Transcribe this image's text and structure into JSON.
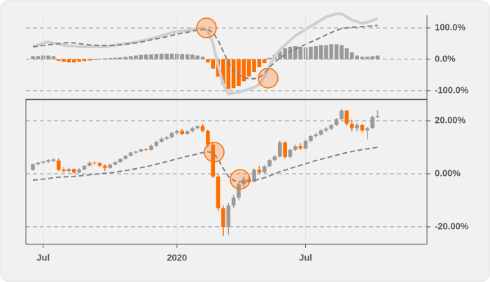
{
  "chart_data": [
    {
      "type": "macd",
      "ylim": [
        -127,
        140
      ],
      "yticks": [
        {
          "value": 100,
          "label": "100.0%"
        },
        {
          "value": 0,
          "label": "0.0%"
        },
        {
          "value": -100,
          "label": "-100.0%"
        }
      ],
      "grid": true,
      "histogram": [
        10,
        10,
        12,
        12,
        10,
        -5,
        -8,
        -10,
        -10,
        -8,
        -6,
        -4,
        -2,
        2,
        3,
        4,
        5,
        6,
        8,
        10,
        12,
        14,
        15,
        16,
        17,
        18,
        18,
        18,
        18,
        17,
        16,
        15,
        12,
        8,
        -10,
        -30,
        -55,
        -80,
        -95,
        -92,
        -85,
        -70,
        -55,
        -40,
        -25,
        -12,
        5,
        15,
        25,
        35,
        40,
        42,
        40,
        38,
        40,
        42,
        45,
        45,
        48,
        48,
        45,
        35,
        22,
        12,
        8,
        8,
        10,
        12
      ],
      "positive_color": "#9a9a9a",
      "negative_color": "#ff6d00",
      "series": [
        {
          "color": "#cfcfcf",
          "style": "solid",
          "values": [
            40,
            45,
            52,
            55,
            52,
            48,
            45,
            43,
            42,
            40,
            40,
            40,
            40,
            40,
            40,
            42,
            45,
            48,
            50,
            52,
            55,
            58,
            62,
            66,
            70,
            75,
            80,
            85,
            88,
            90,
            92,
            95,
            98,
            100,
            90,
            50,
            -20,
            -80,
            -110,
            -108,
            -105,
            -100,
            -95,
            -90,
            -80,
            -55,
            -20,
            10,
            30,
            45,
            60,
            75,
            85,
            95,
            105,
            115,
            125,
            135,
            140,
            145,
            145,
            135,
            125,
            120,
            115,
            118,
            124,
            130
          ]
        },
        {
          "color": "#808080",
          "style": "dashed",
          "values": [
            40,
            42,
            44,
            46,
            48,
            50,
            52,
            53,
            52,
            50,
            48,
            46,
            45,
            44,
            44,
            44,
            45,
            46,
            48,
            50,
            52,
            55,
            58,
            62,
            65,
            68,
            72,
            76,
            80,
            83,
            86,
            90,
            93,
            95,
            95,
            85,
            60,
            25,
            -10,
            -35,
            -50,
            -58,
            -62,
            -62,
            -58,
            -45,
            -25,
            -10,
            5,
            15,
            25,
            32,
            40,
            48,
            55,
            62,
            70,
            78,
            85,
            92,
            98,
            100,
            102,
            103,
            104,
            105,
            106,
            108
          ]
        }
      ]
    },
    {
      "type": "candlestick",
      "categories": [
        null,
        null,
        "Jul",
        null,
        null,
        null,
        null,
        null,
        null,
        null,
        null,
        null,
        null,
        null,
        null,
        null,
        null,
        null,
        null,
        null,
        null,
        null,
        null,
        null,
        null,
        null,
        null,
        null,
        "2020",
        null,
        null,
        null,
        null,
        null,
        null,
        null,
        null,
        null,
        null,
        null,
        null,
        null,
        null,
        null,
        null,
        null,
        null,
        null,
        null,
        null,
        null,
        null,
        null,
        "Jul",
        null,
        null,
        null,
        null,
        null,
        null,
        null,
        null,
        null,
        null,
        null,
        null,
        null,
        null
      ],
      "open": [
        1.5,
        3.6,
        4.2,
        4.6,
        4.8,
        5.0,
        1.5,
        1.0,
        1.8,
        0.5,
        1.6,
        3.0,
        4.2,
        4.0,
        3.0,
        2.2,
        3.5,
        4.4,
        5.6,
        6.8,
        8.0,
        8.4,
        9.2,
        9.0,
        10.6,
        12.0,
        13.2,
        13.8,
        15.4,
        16.2,
        15.0,
        16.0,
        17.2,
        18.0,
        16.2,
        11.0,
        -1.0,
        -13.0,
        -20.0,
        -12.0,
        -9.0,
        -4.0,
        -2.0,
        -3.0,
        1.5,
        0.5,
        2.8,
        5.2,
        6.5,
        11.8,
        6.4,
        9.0,
        10.4,
        9.6,
        12.4,
        14.2,
        14.8,
        16.4,
        17.0,
        18.4,
        20.6,
        23.8,
        18.8,
        17.2,
        18.4,
        16.4,
        17.2,
        21.4
      ],
      "high": [
        3.8,
        4.5,
        5.0,
        5.5,
        5.8,
        5.8,
        2.5,
        2.2,
        2.0,
        2.0,
        3.2,
        4.6,
        4.6,
        4.4,
        3.6,
        3.8,
        4.6,
        5.8,
        7.0,
        8.2,
        8.6,
        9.5,
        9.6,
        11.0,
        12.4,
        13.8,
        14.2,
        15.8,
        16.6,
        16.8,
        16.4,
        17.8,
        18.2,
        18.8,
        16.6,
        11.6,
        0.0,
        -12.0,
        -11.0,
        -8.0,
        -3.0,
        -1.0,
        -0.5,
        2.0,
        3.0,
        3.2,
        5.5,
        7.0,
        12.5,
        12.2,
        9.5,
        11.0,
        11.5,
        12.8,
        14.6,
        15.5,
        16.8,
        17.6,
        18.6,
        21.0,
        24.6,
        24.0,
        20.5,
        19.2,
        18.8,
        17.6,
        22.0,
        24.0
      ],
      "low": [
        1.2,
        3.2,
        3.8,
        4.0,
        4.6,
        1.0,
        0.5,
        0.3,
        0.0,
        0.2,
        1.4,
        2.8,
        3.5,
        2.5,
        1.0,
        2.0,
        3.2,
        4.2,
        5.4,
        6.6,
        7.6,
        8.2,
        8.6,
        8.8,
        10.2,
        11.8,
        12.6,
        13.4,
        14.8,
        14.6,
        14.8,
        15.6,
        16.8,
        15.6,
        10.0,
        -1.5,
        -14.0,
        -23.5,
        -23.0,
        -13.0,
        -10.0,
        -5.5,
        -3.5,
        -3.2,
        0.0,
        0.2,
        2.5,
        4.8,
        6.2,
        5.8,
        5.8,
        8.6,
        9.0,
        9.2,
        12.0,
        13.6,
        14.4,
        15.8,
        16.6,
        18.0,
        20.2,
        18.0,
        16.0,
        16.0,
        15.6,
        13.0,
        17.0,
        21.0
      ],
      "close": [
        3.6,
        4.2,
        4.6,
        5.2,
        5.4,
        1.5,
        1.0,
        1.8,
        0.5,
        1.6,
        3.0,
        4.2,
        4.0,
        3.0,
        2.2,
        3.5,
        4.4,
        5.6,
        6.8,
        8.0,
        8.4,
        9.2,
        9.0,
        10.6,
        12.0,
        13.2,
        13.8,
        15.4,
        16.2,
        15.0,
        16.0,
        17.2,
        18.0,
        16.2,
        11.0,
        -1.0,
        -13.0,
        -20.0,
        -12.0,
        -9.0,
        -4.0,
        -2.0,
        -3.0,
        1.5,
        0.5,
        2.8,
        5.2,
        6.5,
        11.8,
        6.4,
        9.0,
        10.4,
        9.6,
        12.4,
        14.2,
        14.8,
        16.4,
        17.0,
        18.4,
        20.6,
        23.8,
        18.8,
        17.2,
        18.4,
        16.4,
        17.2,
        21.4,
        21.8
      ],
      "up_color": "#9a9a9a",
      "down_color": "#ff6d00",
      "ma": {
        "color": "#808080",
        "values": [
          -2.4,
          -2.2,
          -2.0,
          -1.8,
          -1.5,
          -1.3,
          -1.2,
          -1.1,
          -1.0,
          -0.8,
          -0.6,
          -0.4,
          -0.2,
          0,
          0.2,
          0.4,
          0.6,
          0.9,
          1.2,
          1.5,
          1.9,
          2.3,
          2.7,
          3.1,
          3.6,
          4.1,
          4.6,
          5.1,
          5.6,
          6.1,
          6.6,
          7.0,
          7.5,
          8.0,
          8.3,
          8.0,
          5.5,
          2.0,
          -1.0,
          -2.5,
          -3.0,
          -3.0,
          -2.8,
          -2.5,
          -2.0,
          -1.5,
          -0.8,
          0,
          0.8,
          1.4,
          2.0,
          2.6,
          3.2,
          3.8,
          4.4,
          5.0,
          5.5,
          6.0,
          6.5,
          7.0,
          7.5,
          8.0,
          8.4,
          8.8,
          9.1,
          9.4,
          9.7,
          10.0
        ]
      },
      "ylim": [
        -26.6,
        27.9
      ],
      "yticks": [
        {
          "value": 20,
          "label": "20.00%"
        },
        {
          "value": 0,
          "label": "0.00%"
        },
        {
          "value": -20,
          "label": "-20.00%"
        }
      ],
      "grid": true
    }
  ]
}
